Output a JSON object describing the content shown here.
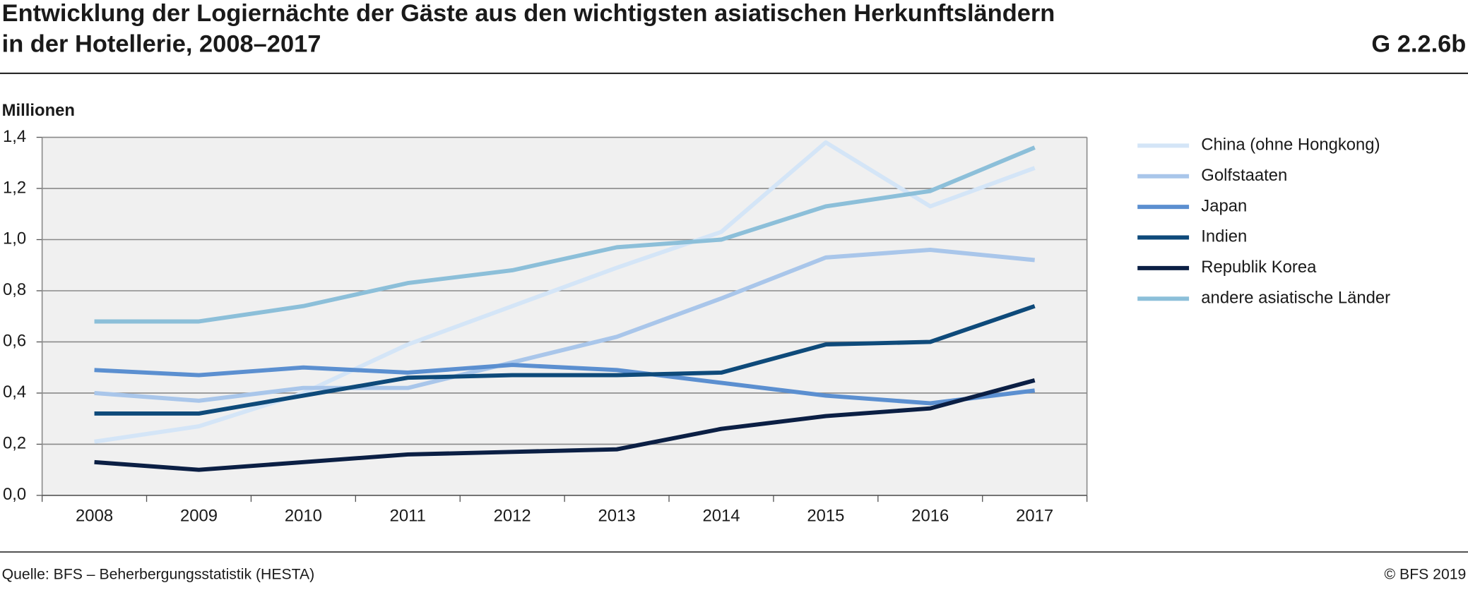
{
  "chart_data": {
    "type": "line",
    "title": [
      "Entwicklung der Logiernächte der Gäste aus den wichtigsten asiatischen Herkunftsländern",
      "in der Hotellerie, 2008–2017"
    ],
    "chart_id": "G 2.2.6b",
    "y_label": "Millionen",
    "source": "Quelle: BFS – Beherbergungsstatistik (HESTA)",
    "copyright": "© BFS 2019",
    "categories": [
      "2008",
      "2009",
      "2010",
      "2011",
      "2012",
      "2013",
      "2014",
      "2015",
      "2016",
      "2017"
    ],
    "ylim": [
      0,
      1.4
    ],
    "yticks": [
      {
        "value": 0,
        "label": "0,0"
      },
      {
        "value": 0.2,
        "label": "0,2"
      },
      {
        "value": 0.4,
        "label": "0,4"
      },
      {
        "value": 0.6,
        "label": "0,6"
      },
      {
        "value": 0.8,
        "label": "0,8"
      },
      {
        "value": 1.0,
        "label": "1,0"
      },
      {
        "value": 1.2,
        "label": "1,2"
      },
      {
        "value": 1.4,
        "label": "1,4"
      }
    ],
    "grid": true,
    "legend": "right",
    "series": [
      {
        "name": "China (ohne Hongkong)",
        "color": "#d4e5f7",
        "values": [
          0.21,
          0.27,
          0.4,
          0.59,
          0.74,
          0.89,
          1.03,
          1.38,
          1.13,
          1.28
        ]
      },
      {
        "name": "Golfstaaten",
        "color": "#a9c6ea",
        "values": [
          0.4,
          0.37,
          0.42,
          0.42,
          0.52,
          0.62,
          0.77,
          0.93,
          0.96,
          0.92
        ]
      },
      {
        "name": "Japan",
        "color": "#5b8fd0",
        "values": [
          0.49,
          0.47,
          0.5,
          0.48,
          0.51,
          0.49,
          0.44,
          0.39,
          0.36,
          0.41
        ]
      },
      {
        "name": "Indien",
        "color": "#0e4a7a",
        "values": [
          0.32,
          0.32,
          0.39,
          0.46,
          0.47,
          0.47,
          0.48,
          0.59,
          0.6,
          0.74
        ]
      },
      {
        "name": "Republik Korea",
        "color": "#0b1f44",
        "values": [
          0.13,
          0.1,
          0.13,
          0.16,
          0.17,
          0.18,
          0.26,
          0.31,
          0.34,
          0.45
        ]
      },
      {
        "name": "andere asiatische Länder",
        "color": "#8cbfd9",
        "values": [
          0.68,
          0.68,
          0.74,
          0.83,
          0.88,
          0.97,
          1.0,
          1.13,
          1.19,
          1.36
        ]
      }
    ]
  }
}
